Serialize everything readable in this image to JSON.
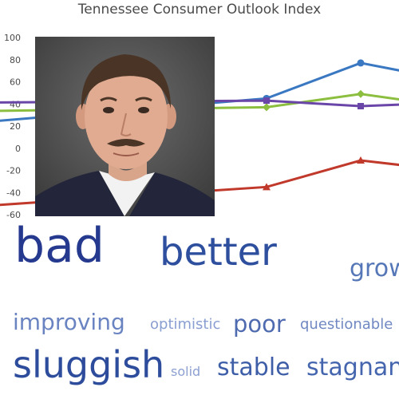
{
  "chart_data": {
    "type": "line",
    "title": "Tennessee Consumer Outlook Index",
    "ylim": [
      -60,
      100
    ],
    "yticks": [
      "100",
      "80",
      "60",
      "40",
      "20",
      "0",
      "-20",
      "-40",
      "-60"
    ],
    "x": [
      1,
      2,
      3,
      4
    ],
    "series": [
      {
        "color": "#3a78c2",
        "marker": "circle",
        "values": [
          20,
          45,
          77,
          62
        ]
      },
      {
        "color": "#8cbf3f",
        "marker": "diamond",
        "values": [
          33,
          37,
          49,
          38
        ]
      },
      {
        "color": "#6a46a8",
        "marker": "square",
        "values": [
          41,
          43,
          38,
          41
        ]
      },
      {
        "color": "#c0392b",
        "marker": "triangle",
        "values": [
          -55,
          -35,
          -11,
          -20
        ]
      }
    ]
  },
  "photo": {
    "icon": "man-portrait-photo"
  },
  "word_cloud": [
    {
      "text": "bad",
      "size": 60,
      "color": "#253a8f"
    },
    {
      "text": "better",
      "size": 48,
      "color": "#2d4f9e"
    },
    {
      "text": "grow",
      "size": 30,
      "color": "#5577b8"
    },
    {
      "text": "improving",
      "size": 28,
      "color": "#6a84c2"
    },
    {
      "text": "optimistic",
      "size": 18,
      "color": "#8a9fd1"
    },
    {
      "text": "poor",
      "size": 29,
      "color": "#4f6bb0"
    },
    {
      "text": "questionable",
      "size": 18,
      "color": "#7088c2"
    },
    {
      "text": "sluggish",
      "size": 46,
      "color": "#2d4d9c"
    },
    {
      "text": "solid",
      "size": 16,
      "color": "#8ca0d2"
    },
    {
      "text": "stable",
      "size": 30,
      "color": "#3e5ea8"
    },
    {
      "text": "stagnan",
      "size": 30,
      "color": "#4566ae"
    }
  ]
}
